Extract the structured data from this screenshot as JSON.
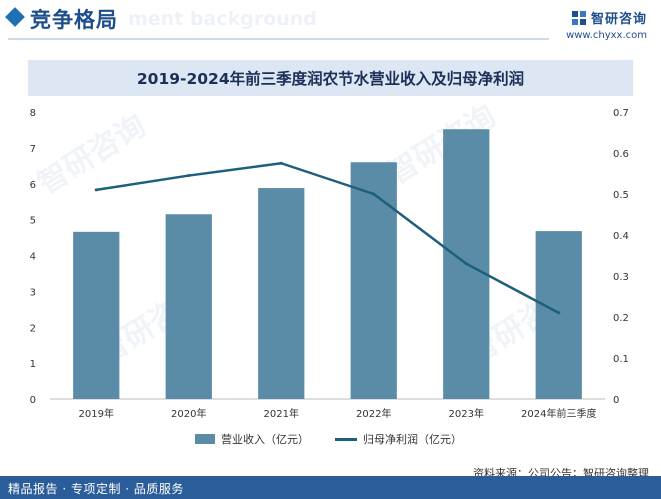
{
  "header": {
    "title": "竞争格局",
    "watermark_text": "ment background",
    "brand_name": "智研咨询",
    "brand_url": "www.chyxx.com"
  },
  "watermark": "智研咨询",
  "chart_data": {
    "type": "bar",
    "title": "2019-2024年前三季度润农节水营业收入及归母净利润",
    "categories": [
      "2019年",
      "2020年",
      "2021年",
      "2022年",
      "2023年",
      "2024年前三季度"
    ],
    "series": [
      {
        "name": "营业收入（亿元）",
        "type": "bar",
        "axis": "left",
        "color": "#5a8ca8",
        "values": [
          4.66,
          5.15,
          5.88,
          6.6,
          7.52,
          4.68
        ]
      },
      {
        "name": "归母净利润（亿元）",
        "type": "line",
        "axis": "right",
        "color": "#1d5f7c",
        "values": [
          0.51,
          0.545,
          0.575,
          0.5,
          0.33,
          0.21
        ]
      }
    ],
    "y_left": {
      "min": 0,
      "max": 8,
      "ticks": [
        "0",
        "1",
        "2",
        "3",
        "4",
        "5",
        "6",
        "7",
        "8"
      ]
    },
    "y_right": {
      "min": 0,
      "max": 0.7,
      "ticks": [
        "0",
        "0.1",
        "0.2",
        "0.3",
        "0.4",
        "0.5",
        "0.6",
        "0.7"
      ]
    },
    "grid": false,
    "legend_position": "bottom"
  },
  "footer": {
    "left_text": "精品报告 · 专项定制 · 品质服务",
    "source_text": "资料来源：公司公告；智研咨询整理"
  }
}
